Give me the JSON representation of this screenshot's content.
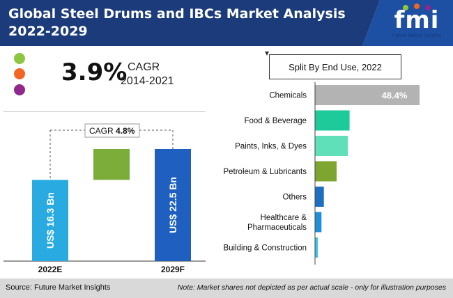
{
  "header": {
    "title": "Global Steel Drums and IBCs Market Analysis 2022-2029",
    "logo_text": "fmi",
    "logo_subtitle": "Future Market Insights",
    "band_color": "#1b3b7a"
  },
  "legend_dots": [
    "#8dc63f",
    "#f26522",
    "#92278f"
  ],
  "cagr": {
    "value": "3.9%",
    "label": "CAGR",
    "period": "2014-2021"
  },
  "chart_data": [
    {
      "type": "bar",
      "categories": [
        "2022E",
        "2029F"
      ],
      "values": [
        16.3,
        22.5
      ],
      "data_labels": [
        "US$ 16.3 Bn",
        "US$ 22.5 Bn"
      ],
      "increment": 6.2,
      "cagr_label": "CAGR",
      "cagr_value": "4.8%",
      "colors": {
        "bar_2022": "#29abe2",
        "bar_2029": "#1f5fbf",
        "increment": "#7cac3a"
      },
      "ylim": [
        0,
        25
      ],
      "grid": false
    },
    {
      "type": "bar",
      "orientation": "horizontal",
      "title": "Split By End Use, 2022",
      "categories": [
        "Chemicals",
        "Food & Beverage",
        "Paints, Inks, & Dyes",
        "Petroleum & Lubricants",
        "Others",
        "Healthcare & Pharmaceuticals",
        "Building & Construction"
      ],
      "values": [
        48.4,
        16.0,
        15.2,
        10.0,
        4.1,
        3.0,
        1.3
      ],
      "data_labels": [
        "48.4%",
        "",
        "",
        "",
        "",
        "",
        ""
      ],
      "colors": [
        "#b3b3b3",
        "#1ec99a",
        "#5fe0b9",
        "#7da52f",
        "#1f6fc0",
        "#1e8fd8",
        "#3fc3e8"
      ],
      "xlim": [
        0,
        48.4
      ],
      "grid": false
    }
  ],
  "footer": {
    "source": "Source: Future Market Insights",
    "note": "Note: Market shares not depicted as per actual scale - only for illustration purposes"
  }
}
